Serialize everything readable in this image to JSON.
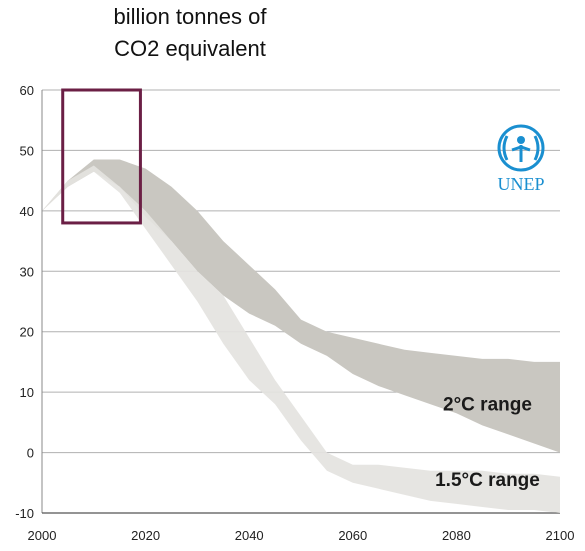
{
  "title_lines": [
    "billion tonnes of",
    "CO2 equivalent"
  ],
  "logo": {
    "text": "UNEP",
    "color": "#1a8fd0"
  },
  "colors": {
    "band_2c": "#c9c7c1",
    "band_15c": "#e4e3df",
    "highlight_box": "#6b1f45",
    "gridline": "#b0b0b0"
  },
  "chart_data": {
    "type": "area",
    "xlim": [
      2000,
      2100
    ],
    "ylim": [
      -10,
      60
    ],
    "x_ticks": [
      2000,
      2020,
      2040,
      2060,
      2080,
      2100
    ],
    "y_ticks": [
      -10,
      0,
      10,
      20,
      30,
      40,
      50,
      60
    ],
    "grid": "horizontal",
    "series": [
      {
        "name": "2°C range",
        "x": [
          2000,
          2005,
          2010,
          2015,
          2020,
          2025,
          2030,
          2035,
          2040,
          2045,
          2050,
          2055,
          2060,
          2065,
          2070,
          2075,
          2080,
          2085,
          2090,
          2095,
          2100
        ],
        "upper": [
          40,
          45,
          48.5,
          48.5,
          47,
          44,
          40,
          35,
          31,
          27,
          22,
          20,
          19,
          18,
          17,
          16.5,
          16,
          15.5,
          15.5,
          15,
          15
        ],
        "lower": [
          40,
          44,
          46.5,
          44,
          39,
          35,
          30,
          26,
          23,
          21,
          18,
          16,
          13,
          11,
          9.5,
          8,
          6.5,
          4.5,
          3,
          1.5,
          0
        ]
      },
      {
        "name": "1.5°C range",
        "x": [
          2000,
          2005,
          2010,
          2015,
          2020,
          2025,
          2030,
          2035,
          2040,
          2045,
          2050,
          2055,
          2060,
          2065,
          2070,
          2075,
          2080,
          2085,
          2090,
          2095,
          2100
        ],
        "upper": [
          40,
          45,
          47.5,
          44,
          40,
          35,
          30,
          26,
          19,
          12,
          6,
          0,
          -2,
          -2,
          -2.5,
          -3,
          -3,
          -3,
          -3.5,
          -3.5,
          -4
        ],
        "lower": [
          40,
          44,
          46.5,
          43,
          37,
          31,
          25,
          18,
          12,
          8,
          2,
          -3,
          -5,
          -6,
          -7,
          -8,
          -8.5,
          -9,
          -9.5,
          -9.5,
          -10
        ]
      }
    ],
    "annotations": [
      {
        "text": "2°C range",
        "x": 2086,
        "y": 7
      },
      {
        "text": "1.5°C range",
        "x": 2086,
        "y": -5.5
      }
    ],
    "highlight_box": {
      "x_range": [
        2004,
        2019
      ],
      "y_range": [
        38,
        60
      ]
    }
  }
}
